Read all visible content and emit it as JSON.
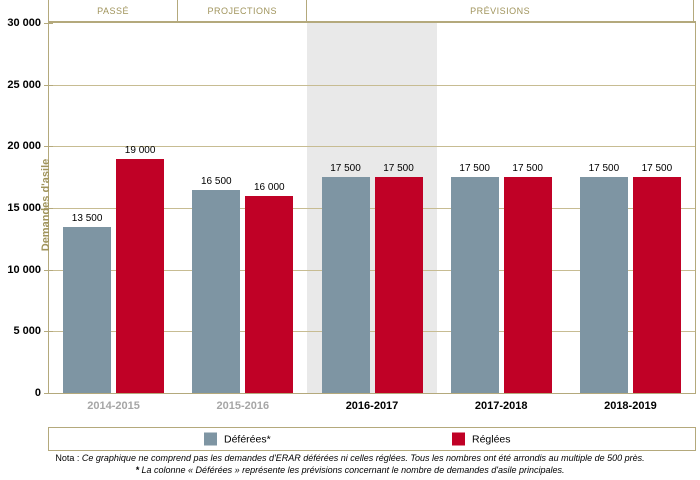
{
  "header": {
    "sections": [
      {
        "label": "PASSÉ",
        "span": 1
      },
      {
        "label": "PROJECTIONS",
        "span": 1
      },
      {
        "label": "PRÉVISIONS",
        "span": 3
      }
    ]
  },
  "chart_data": {
    "type": "bar",
    "title": "",
    "xlabel": "",
    "ylabel": "Demandes d'asile",
    "ylim": [
      0,
      30000
    ],
    "ytick_step": 5000,
    "yticks": [
      {
        "value": 0,
        "label": "0"
      },
      {
        "value": 5000,
        "label": "5 000"
      },
      {
        "value": 10000,
        "label": "10 000"
      },
      {
        "value": 15000,
        "label": "15 000"
      },
      {
        "value": 20000,
        "label": "20 000"
      },
      {
        "value": 25000,
        "label": "25 000"
      },
      {
        "value": 30000,
        "label": "30 000"
      }
    ],
    "categories": [
      {
        "label": "2014-2015",
        "muted": true
      },
      {
        "label": "2015-2016",
        "muted": true
      },
      {
        "label": "2016-2017",
        "muted": false
      },
      {
        "label": "2017-2018",
        "muted": false
      },
      {
        "label": "2018-2019",
        "muted": false
      }
    ],
    "highlight_category_index": 2,
    "grid": true,
    "legend_position": "bottom",
    "series": [
      {
        "name": "Déférées*",
        "color": "#7e95a3",
        "values": [
          13500,
          16500,
          17500,
          17500,
          17500
        ],
        "labels": [
          "13 500",
          "16 500",
          "17 500",
          "17 500",
          "17 500"
        ]
      },
      {
        "name": "Réglées",
        "color": "#c00126",
        "values": [
          19000,
          16000,
          17500,
          17500,
          17500
        ],
        "labels": [
          "19 000",
          "16 000",
          "17 500",
          "17 500",
          "17 500"
        ]
      }
    ]
  },
  "legend": {
    "items": [
      {
        "label": "Déférées*",
        "color": "#7e95a3"
      },
      {
        "label": "Réglées",
        "color": "#c00126"
      }
    ]
  },
  "notes": {
    "line1_prefix": "Nota :",
    "line1_text": "Ce graphique ne comprend pas les demandes d'ERAR déférées ni celles réglées. Tous les nombres ont été arrondis au multiple de 500 près.",
    "line2_prefix": "*",
    "line2_text": "La colonne « Déférées » représente les prévisions concernant le nombre de demandes d'asile principales."
  },
  "colors": {
    "tan_text": "#a0945c",
    "tan_line": "#b4a97c",
    "gridline": "#c7bc92",
    "highlight_band": "#e9e9e9",
    "muted_label": "#a6a6a6",
    "bar_deferees": "#7e95a3",
    "bar_reglees": "#c00126"
  }
}
